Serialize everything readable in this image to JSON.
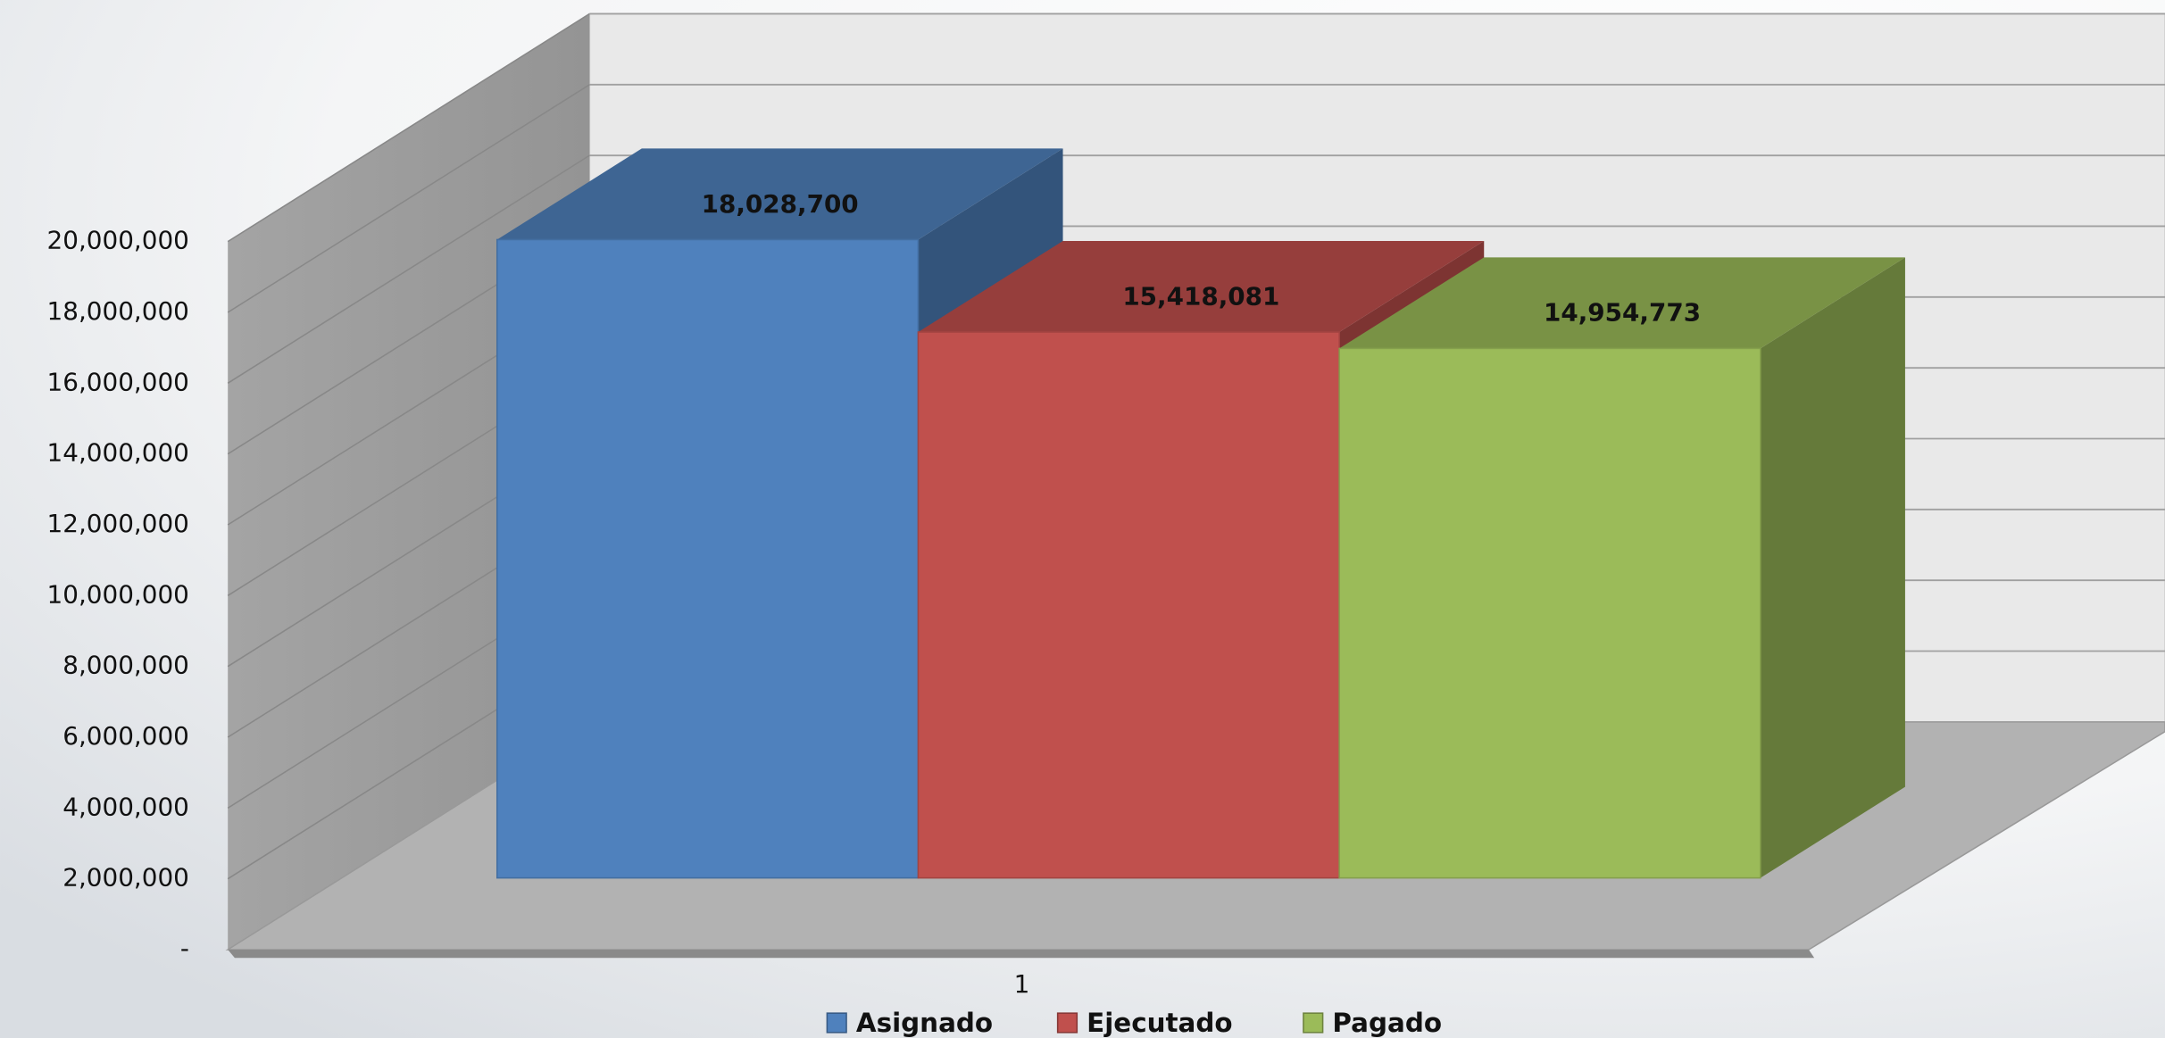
{
  "chart_data": {
    "type": "bar3d",
    "categories": [
      "1"
    ],
    "series": [
      {
        "name": "Asignado",
        "color": "#4f81bd",
        "values": [
          18028700
        ],
        "value_labels": [
          "18,028,700"
        ]
      },
      {
        "name": "Ejecutado",
        "color": "#c0504d",
        "values": [
          15418081
        ],
        "value_labels": [
          "15,418,081"
        ]
      },
      {
        "name": "Pagado",
        "color": "#9bbb59",
        "values": [
          14954773
        ],
        "value_labels": [
          "14,954,773"
        ]
      }
    ],
    "ylim": [
      0,
      20000000
    ],
    "yticks": [
      {
        "value": 0,
        "label": "-"
      },
      {
        "value": 2000000,
        "label": "2,000,000"
      },
      {
        "value": 4000000,
        "label": "4,000,000"
      },
      {
        "value": 6000000,
        "label": "6,000,000"
      },
      {
        "value": 8000000,
        "label": "8,000,000"
      },
      {
        "value": 10000000,
        "label": "10,000,000"
      },
      {
        "value": 12000000,
        "label": "12,000,000"
      },
      {
        "value": 14000000,
        "label": "14,000,000"
      },
      {
        "value": 16000000,
        "label": "16,000,000"
      },
      {
        "value": 18000000,
        "label": "18,000,000"
      },
      {
        "value": 20000000,
        "label": "20,000,000"
      }
    ],
    "grid": true,
    "legend": "bottom"
  }
}
